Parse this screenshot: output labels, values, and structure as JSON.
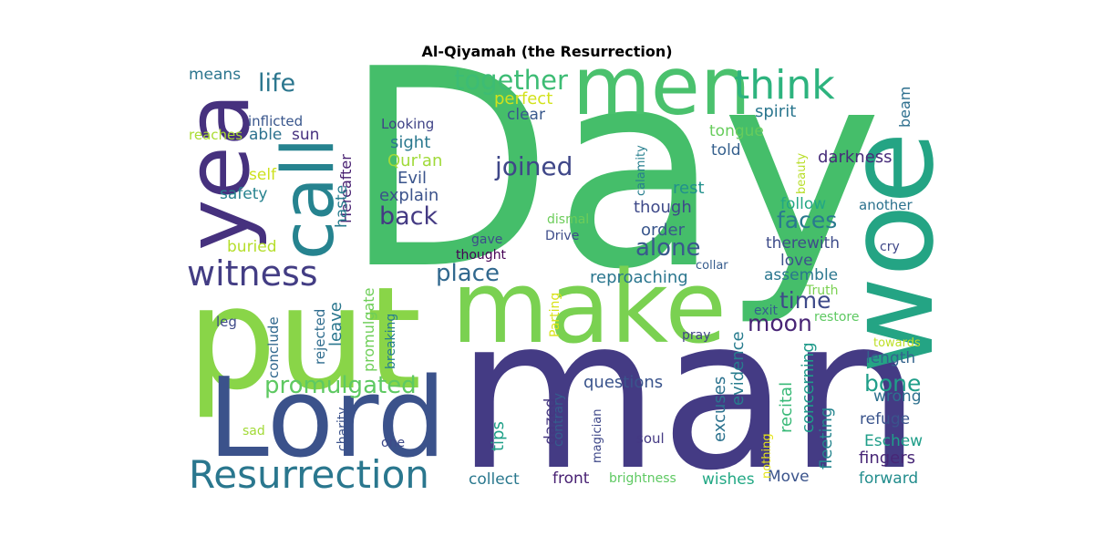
{
  "chart_data": {
    "type": "wordcloud",
    "title": "Al-Qiyamah (the Resurrection)",
    "words": [
      {
        "text": "Day",
        "color": "#45be6a"
      },
      {
        "text": "man",
        "color": "#443b84"
      },
      {
        "text": "put",
        "color": "#89d548"
      },
      {
        "text": "Lord",
        "color": "#3b528b"
      },
      {
        "text": "make",
        "color": "#7ad151"
      },
      {
        "text": "men",
        "color": "#4ac16d"
      },
      {
        "text": "woe",
        "color": "#24a484"
      },
      {
        "text": "yea",
        "color": "#46317e"
      },
      {
        "text": "call",
        "color": "#26838f"
      },
      {
        "text": "Resurrection",
        "color": "#2a778e"
      },
      {
        "text": "think",
        "color": "#2db37e"
      },
      {
        "text": "witness",
        "color": "#433d84"
      },
      {
        "text": "together",
        "color": "#3dbc74"
      },
      {
        "text": "promulgated",
        "color": "#5ec962"
      },
      {
        "text": "life",
        "color": "#2b768e"
      },
      {
        "text": "joined",
        "color": "#3f4788"
      },
      {
        "text": "back",
        "color": "#443a83"
      },
      {
        "text": "place",
        "color": "#31688e"
      },
      {
        "text": "alone",
        "color": "#38598c"
      },
      {
        "text": "faces",
        "color": "#297a8e"
      },
      {
        "text": "time",
        "color": "#3e4a89"
      },
      {
        "text": "moon",
        "color": "#482475"
      },
      {
        "text": "bone",
        "color": "#1f9e89"
      },
      {
        "text": "means",
        "color": "#2b758e"
      },
      {
        "text": "perfect",
        "color": "#d2e21b"
      },
      {
        "text": "clear",
        "color": "#38588c"
      },
      {
        "text": "spirit",
        "color": "#2a768e"
      },
      {
        "text": "inflicted",
        "color": "#39568c"
      },
      {
        "text": "Looking",
        "color": "#404387"
      },
      {
        "text": "sight",
        "color": "#2a788e"
      },
      {
        "text": "Qur'an",
        "color": "#a0da39"
      },
      {
        "text": "Evil",
        "color": "#3a548c"
      },
      {
        "text": "explain",
        "color": "#3b528b"
      },
      {
        "text": "tongue",
        "color": "#67cc5c"
      },
      {
        "text": "told",
        "color": "#35608d"
      },
      {
        "text": "darkness",
        "color": "#472c7a"
      },
      {
        "text": "beam",
        "color": "#2e6f8e"
      },
      {
        "text": "reaches",
        "color": "#aadc32"
      },
      {
        "text": "able",
        "color": "#2c718e"
      },
      {
        "text": "sun",
        "color": "#46307e"
      },
      {
        "text": "Hereafter",
        "color": "#482071"
      },
      {
        "text": "self",
        "color": "#cde11d"
      },
      {
        "text": "safety",
        "color": "#26828e"
      },
      {
        "text": "haste",
        "color": "#287d8e"
      },
      {
        "text": "rest",
        "color": "#21918c"
      },
      {
        "text": "though",
        "color": "#3e4989"
      },
      {
        "text": "order",
        "color": "#39568c"
      },
      {
        "text": "follow",
        "color": "#22a785"
      },
      {
        "text": "another",
        "color": "#2c728e"
      },
      {
        "text": "therewith",
        "color": "#3e4c8a"
      },
      {
        "text": "love",
        "color": "#3b518b"
      },
      {
        "text": "assemble",
        "color": "#2a768e"
      },
      {
        "text": "buried",
        "color": "#b5de2b"
      },
      {
        "text": "gave",
        "color": "#3d4d8a"
      },
      {
        "text": "dismal",
        "color": "#6ccd5a"
      },
      {
        "text": "Drive",
        "color": "#3e4c8a"
      },
      {
        "text": "thought",
        "color": "#440154"
      },
      {
        "text": "calamity",
        "color": "#277f8e"
      },
      {
        "text": "beauty",
        "color": "#b8de29"
      },
      {
        "text": "collar",
        "color": "#365c8d"
      },
      {
        "text": "cry",
        "color": "#3f4788"
      },
      {
        "text": "Truth",
        "color": "#7ad151"
      },
      {
        "text": "restore",
        "color": "#5ec962"
      },
      {
        "text": "exit",
        "color": "#355f8d"
      },
      {
        "text": "reproaching",
        "color": "#2a768e"
      },
      {
        "text": "leave",
        "color": "#2a778e"
      },
      {
        "text": "promulgate",
        "color": "#6ece58"
      },
      {
        "text": "rejected",
        "color": "#2f6c8e"
      },
      {
        "text": "breaking",
        "color": "#277e8e"
      },
      {
        "text": "Parting",
        "color": "#d8e219"
      },
      {
        "text": "leg",
        "color": "#3e4a89"
      },
      {
        "text": "conclude",
        "color": "#31688e"
      },
      {
        "text": "pray",
        "color": "#414487"
      },
      {
        "text": "towards",
        "color": "#bddf26"
      },
      {
        "text": "length",
        "color": "#33638d"
      },
      {
        "text": "questions",
        "color": "#3a548c"
      },
      {
        "text": "excuses",
        "color": "#2c728e"
      },
      {
        "text": "evidence",
        "color": "#287c8e"
      },
      {
        "text": "recital",
        "color": "#38b977"
      },
      {
        "text": "concerning",
        "color": "#1f9a8a"
      },
      {
        "text": "fleeting",
        "color": "#25858e"
      },
      {
        "text": "wrong",
        "color": "#2d708e"
      },
      {
        "text": "refuge",
        "color": "#3a548c"
      },
      {
        "text": "Eschew",
        "color": "#1f9e89"
      },
      {
        "text": "fingers",
        "color": "#482777"
      },
      {
        "text": "forward",
        "color": "#228d8d"
      },
      {
        "text": "Move",
        "color": "#3a538b"
      },
      {
        "text": "wishes",
        "color": "#22a884"
      },
      {
        "text": "brightness",
        "color": "#5ec962"
      },
      {
        "text": "collect",
        "color": "#2a788e"
      },
      {
        "text": "front",
        "color": "#482173"
      },
      {
        "text": "tips",
        "color": "#1fa088"
      },
      {
        "text": "dazed",
        "color": "#453781"
      },
      {
        "text": "contrary",
        "color": "#355e8d"
      },
      {
        "text": "magician",
        "color": "#3f4889"
      },
      {
        "text": "nothing",
        "color": "#e5e419"
      },
      {
        "text": "soul",
        "color": "#443983"
      },
      {
        "text": "sad",
        "color": "#a2da37"
      },
      {
        "text": "charity",
        "color": "#3b528b"
      },
      {
        "text": "one",
        "color": "#3e4a89"
      }
    ]
  }
}
